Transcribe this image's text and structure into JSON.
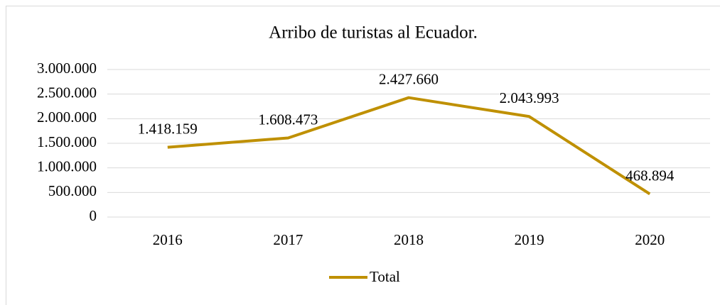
{
  "chart_data": {
    "type": "line",
    "title": "Arribo de turistas al Ecuador.",
    "categories": [
      "2016",
      "2017",
      "2018",
      "2019",
      "2020"
    ],
    "series": [
      {
        "name": "Total",
        "color": "#bf9000",
        "values": [
          1418159,
          1608473,
          2427660,
          2043993,
          468894
        ],
        "value_labels": [
          "1.418.159",
          "1.608.473",
          "2.427.660",
          "2.043.993",
          "468.894"
        ]
      }
    ],
    "ylim": [
      0,
      3000000
    ],
    "yticks": [
      0,
      {
        "value": 500000,
        "label": "500.000"
      },
      {
        "value": 1000000,
        "label": "1.000.000"
      },
      {
        "value": 1500000,
        "label": "1.500.000"
      },
      {
        "value": 2000000,
        "label": "2.000.000"
      },
      {
        "value": 2500000,
        "label": "2.500.000"
      },
      {
        "value": 3000000,
        "label": "3.000.000"
      }
    ],
    "grid": true,
    "legend": "bottom"
  }
}
